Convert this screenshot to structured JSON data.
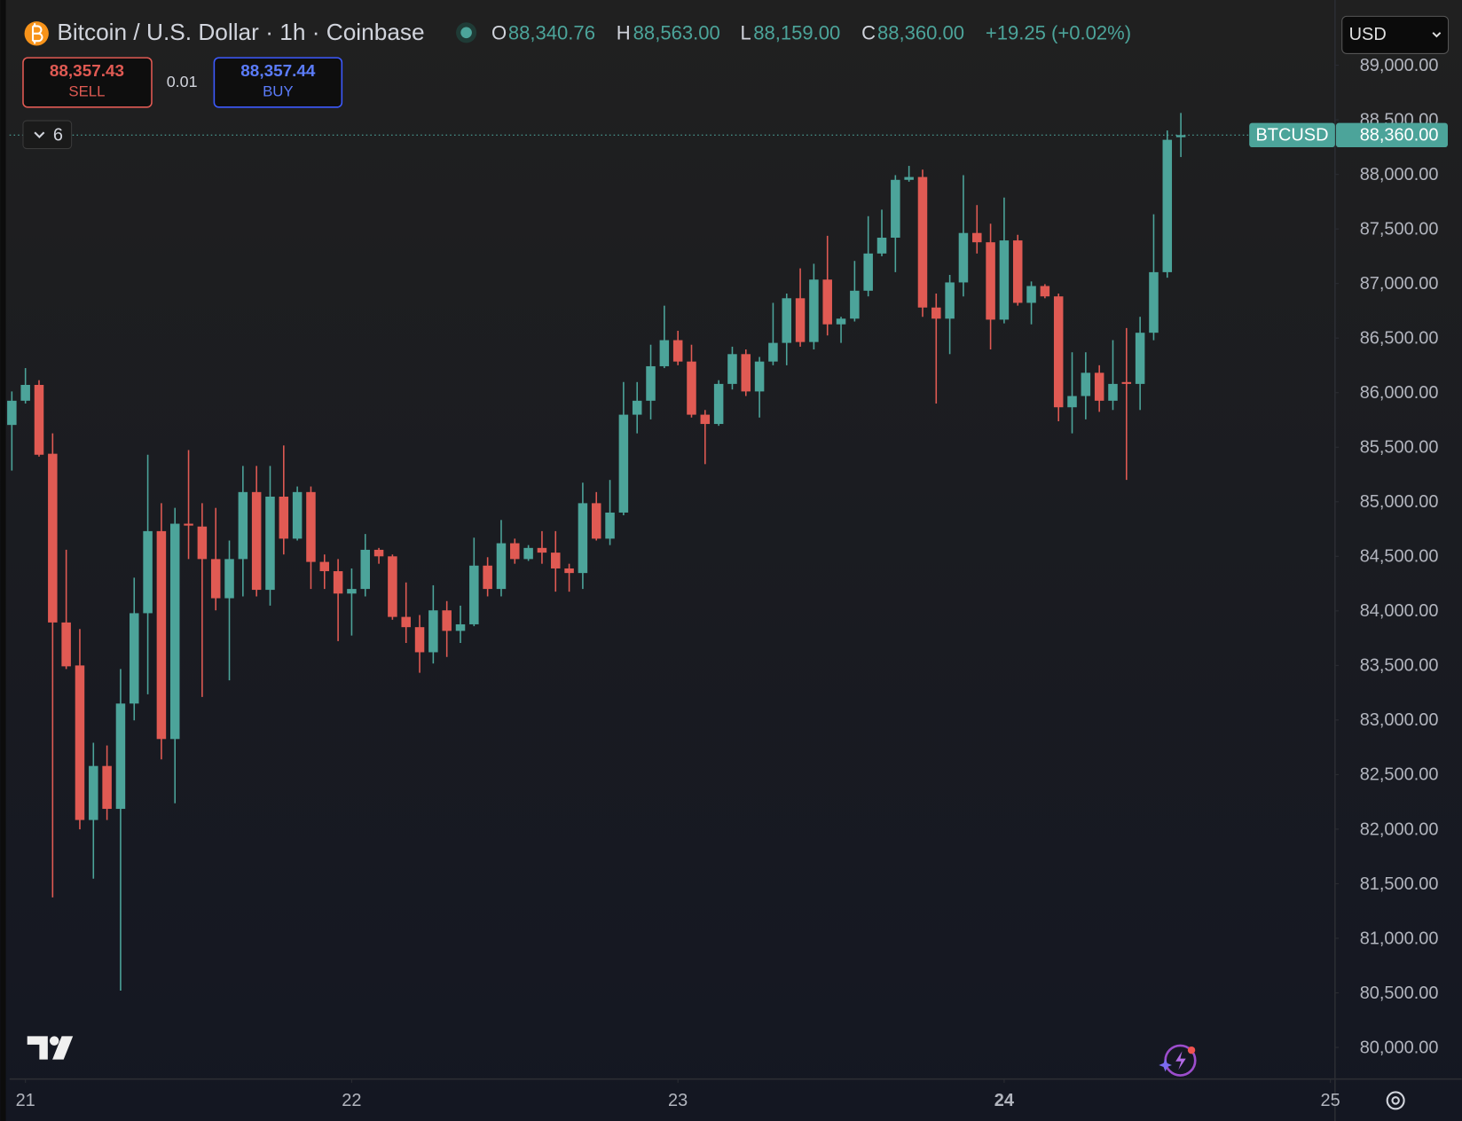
{
  "header": {
    "symbol": "Bitcoin / U.S. Dollar · 1h · Coinbase",
    "open_label": "O",
    "open": "88,340.76",
    "high_label": "H",
    "high": "88,563.00",
    "low_label": "L",
    "low": "88,159.00",
    "close_label": "C",
    "close": "88,360.00",
    "change": "+19.25 (+0.02%)"
  },
  "trade_panel": {
    "sell_price": "88,357.43",
    "sell_label": "SELL",
    "spread": "0.01",
    "buy_price": "88,357.44",
    "buy_label": "BUY"
  },
  "indicators_count": "6",
  "currency": "USD",
  "chart_data": {
    "type": "candlestick",
    "up_color": "#4ca49a",
    "down_color": "#e05a53",
    "x": [
      -1,
      0,
      1,
      2,
      3,
      4,
      5,
      6,
      7,
      8,
      9,
      10,
      11,
      12,
      13,
      14,
      15,
      16,
      17,
      18,
      19,
      20,
      21,
      22,
      23,
      24,
      25,
      26,
      27,
      28,
      29,
      30,
      31,
      32,
      33,
      34,
      35,
      36,
      37,
      38,
      39,
      40,
      41,
      42,
      43,
      44,
      45,
      46,
      47,
      48,
      49,
      50,
      51,
      52,
      53,
      54,
      55,
      56,
      57,
      58,
      59,
      60,
      61,
      62,
      63,
      64,
      65,
      66,
      67,
      68,
      69,
      70,
      71,
      72,
      73,
      74,
      75,
      76,
      77,
      78,
      79,
      80,
      81,
      82,
      83,
      84,
      85
    ],
    "open": [
      85704,
      85926,
      86071,
      85440,
      83894,
      83500,
      82084,
      82579,
      82186,
      83151,
      83979,
      84731,
      82826,
      84799,
      84773,
      84475,
      84116,
      84475,
      85089,
      84193,
      85047,
      84662,
      85089,
      84449,
      84364,
      84159,
      84201,
      84560,
      84500,
      83945,
      83851,
      83621,
      84005,
      83817,
      83877,
      84415,
      84201,
      84620,
      84475,
      84577,
      84534,
      84389,
      84347,
      84987,
      84662,
      84901,
      85798,
      85926,
      86242,
      86481,
      86285,
      85798,
      85713,
      86080,
      86353,
      86011,
      86285,
      86456,
      86865,
      86464,
      87036,
      86626,
      86678,
      86934,
      87275,
      87420,
      87950,
      87976,
      86780,
      86678,
      87010,
      87463,
      87378,
      86669,
      87395,
      86823,
      86977,
      86882,
      85866,
      85969,
      86182,
      85926,
      86097,
      86080,
      86549,
      87104,
      88340.76
    ],
    "high": [
      86011,
      86225,
      86114,
      85627,
      84560,
      83834,
      82792,
      82767,
      83467,
      84304,
      85431,
      84987,
      84944,
      85474,
      84987,
      84944,
      84645,
      85328,
      85328,
      85328,
      85516,
      85140,
      85140,
      84517,
      84475,
      84389,
      84705,
      84577,
      84517,
      84261,
      83962,
      84235,
      84090,
      84048,
      84671,
      84492,
      84833,
      84662,
      84603,
      84731,
      84731,
      84432,
      85175,
      85089,
      85200,
      86097,
      86097,
      86439,
      86797,
      86567,
      86439,
      85841,
      86114,
      86421,
      86396,
      86327,
      86823,
      86908,
      87139,
      87181,
      87437,
      86695,
      87207,
      87617,
      87677,
      87993,
      88078,
      88044,
      86908,
      87079,
      87993,
      87719,
      87548,
      87788,
      87446,
      87019,
      86994,
      86908,
      86370,
      86370,
      86251,
      86481,
      86592,
      86695,
      87634,
      88402,
      88563
    ],
    "low": [
      85286,
      85900,
      85414,
      81375,
      83467,
      81998,
      81546,
      82084,
      80520,
      82997,
      83236,
      82639,
      82237,
      84475,
      83211,
      84005,
      83364,
      84133,
      84133,
      84048,
      84517,
      84645,
      84201,
      84201,
      83723,
      83774,
      84133,
      84432,
      83919,
      83706,
      83433,
      83518,
      83578,
      83706,
      83860,
      84133,
      84133,
      84432,
      84458,
      84432,
      84176,
      84176,
      84201,
      84645,
      84603,
      84876,
      85627,
      85755,
      86225,
      86251,
      85772,
      85345,
      85696,
      86029,
      85969,
      85772,
      86251,
      86251,
      86421,
      86396,
      86524,
      86456,
      86652,
      86882,
      87250,
      87104,
      87933,
      86695,
      85900,
      86353,
      86882,
      87275,
      86396,
      86635,
      86797,
      86626,
      86865,
      85738,
      85627,
      85755,
      85824,
      85841,
      85200,
      85841,
      86480,
      87053,
      88159
    ],
    "close": [
      85926,
      86071,
      85431,
      83894,
      83492,
      82084,
      82579,
      82186,
      83151,
      83979,
      84731,
      82826,
      84799,
      84782,
      84475,
      84116,
      84475,
      85089,
      84193,
      85047,
      84662,
      85089,
      84449,
      84364,
      84159,
      84201,
      84560,
      84500,
      83945,
      83851,
      83621,
      84005,
      83817,
      83877,
      84415,
      84201,
      84620,
      84475,
      84577,
      84534,
      84389,
      84347,
      84987,
      84662,
      84901,
      85798,
      85926,
      86242,
      86481,
      86285,
      85798,
      85713,
      86080,
      86353,
      86011,
      86285,
      86456,
      86865,
      86464,
      87036,
      86626,
      86678,
      86934,
      87275,
      87420,
      87950,
      87976,
      86780,
      86678,
      87010,
      87463,
      87378,
      86669,
      87395,
      86823,
      86977,
      86882,
      85866,
      85969,
      86182,
      85926,
      86080,
      86080,
      86549,
      87104,
      88317,
      88360
    ],
    "xlim": [
      -1.17,
      96.34
    ],
    "xticks": [
      {
        "value": 0,
        "label": "21"
      },
      {
        "value": 24,
        "label": "22"
      },
      {
        "value": 48,
        "label": "23"
      },
      {
        "value": 72,
        "label": "24"
      },
      {
        "value": 96,
        "label": "25"
      }
    ],
    "ylim": [
      79710,
      89598
    ],
    "yticks": [
      {
        "value": 80000,
        "label": "80,000.00"
      },
      {
        "value": 80500,
        "label": "80,500.00"
      },
      {
        "value": 81000,
        "label": "81,000.00"
      },
      {
        "value": 81500,
        "label": "81,500.00"
      },
      {
        "value": 82000,
        "label": "82,000.00"
      },
      {
        "value": 82500,
        "label": "82,500.00"
      },
      {
        "value": 83000,
        "label": "83,000.00"
      },
      {
        "value": 83500,
        "label": "83,500.00"
      },
      {
        "value": 84000,
        "label": "84,000.00"
      },
      {
        "value": 84500,
        "label": "84,500.00"
      },
      {
        "value": 85000,
        "label": "85,000.00"
      },
      {
        "value": 85500,
        "label": "85,500.00"
      },
      {
        "value": 86000,
        "label": "86,000.00"
      },
      {
        "value": 86500,
        "label": "86,500.00"
      },
      {
        "value": 87000,
        "label": "87,000.00"
      },
      {
        "value": 87500,
        "label": "87,500.00"
      },
      {
        "value": 88000,
        "label": "88,000.00"
      },
      {
        "value": 88500,
        "label": "88,500.00"
      },
      {
        "value": 89000,
        "label": "89,000.00"
      }
    ],
    "last_price_symbol": "BTCUSD",
    "last_price_label": "88,360.00"
  }
}
